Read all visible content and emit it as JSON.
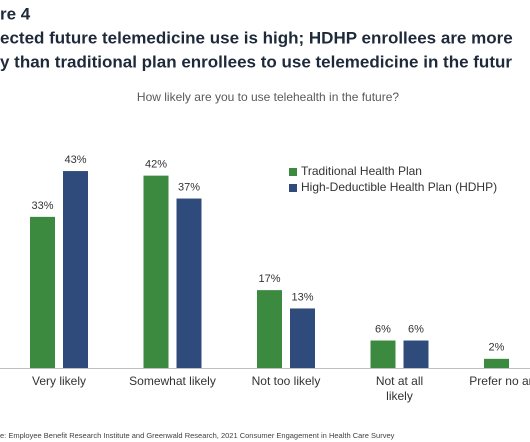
{
  "chart_data": {
    "type": "bar",
    "title_lines": [
      "re 4",
      "ected future telemedicine use is high; HDHP enrollees are more",
      "y than traditional plan enrollees to use telemedicine in the futur"
    ],
    "subtitle": "How likely are you to use telehealth in the future?",
    "categories": [
      "Very likely",
      "Somewhat likely",
      "Not too likely",
      "Not at all likely",
      "Prefer no answe"
    ],
    "series": [
      {
        "name": "Traditional Health Plan",
        "color": "#3b8a3f",
        "values": [
          33,
          42,
          17,
          6,
          2
        ],
        "value_labels": [
          "33%",
          "42%",
          "17%",
          "6%",
          "2%"
        ]
      },
      {
        "name": "High-Deductible Health Plan (HDHP)",
        "color": "#2f4b7c",
        "values": [
          43,
          37,
          13,
          6,
          null
        ],
        "value_labels": [
          "43%",
          "37%",
          "13%",
          "6%",
          null
        ]
      }
    ],
    "source": "e:  Employee Benefit Research Institute and Greenwald Research, 2021 Consumer Engagement in Health Care Survey"
  }
}
